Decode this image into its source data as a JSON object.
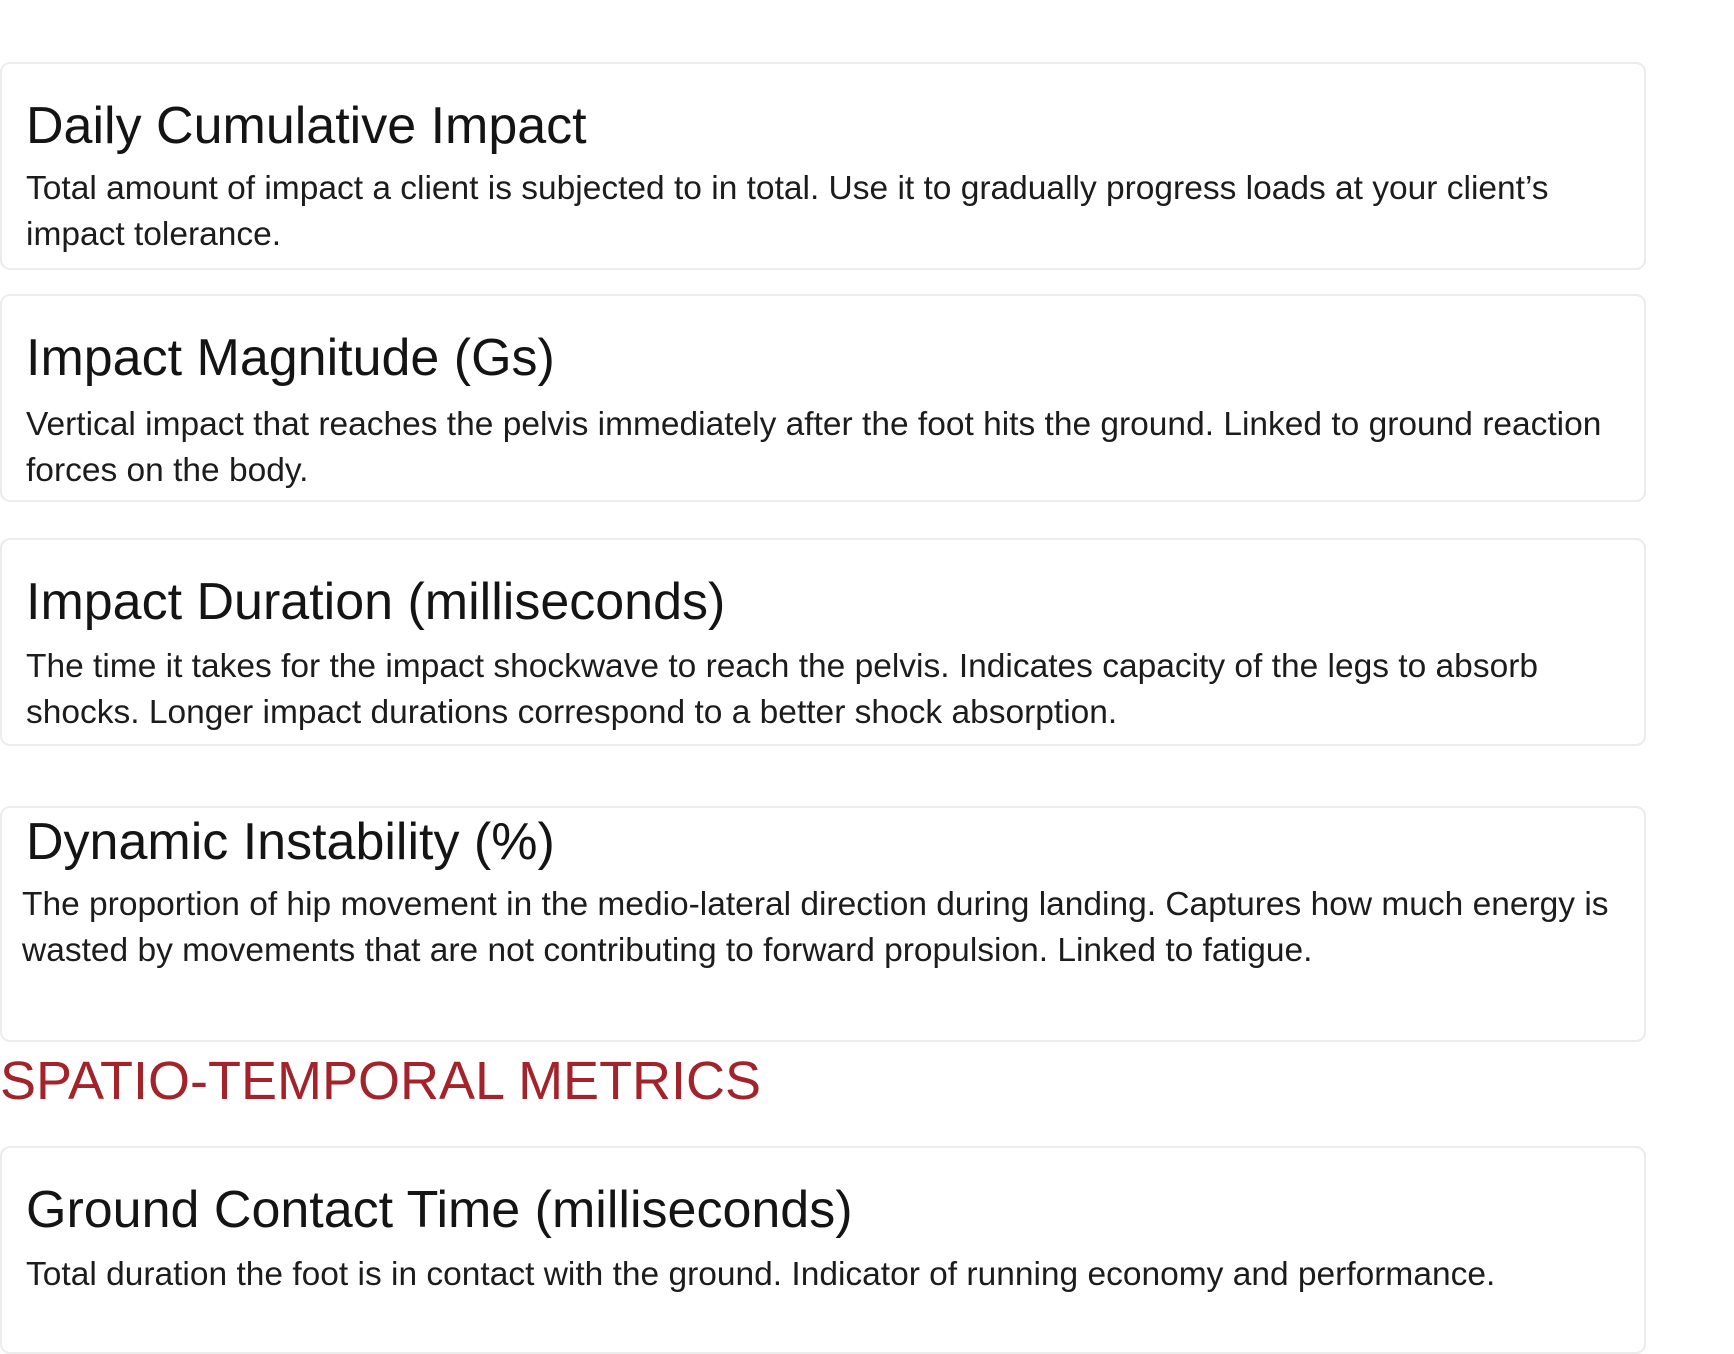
{
  "cards": [
    {
      "title": "Daily Cumulative Impact",
      "description": "Total amount of impact a client is subjected to in total. Use it to gradually progress loads at your client’s impact tolerance."
    },
    {
      "title": "Impact Magnitude (Gs)",
      "description": "Vertical impact that reaches the pelvis immediately after the foot hits the ground. Linked to ground reaction forces on the body."
    },
    {
      "title": "Impact Duration (milliseconds)",
      "description": "The time it takes for the impact shockwave to reach the pelvis. Indicates capacity of the legs to absorb shocks. Longer impact durations correspond to a better shock absorption."
    },
    {
      "title": "Dynamic Instability (%)",
      "description": "The proportion of hip movement in the medio-lateral direction during landing. Captures how much energy is wasted by movements that are not contributing to forward propulsion. Linked to fatigue."
    },
    {
      "title": "Ground Contact Time (milliseconds)",
      "description": "Total duration the foot is in contact with the ground. Indicator of running economy and performance."
    }
  ],
  "section": {
    "heading": "SPATIO-TEMPORAL METRICS"
  },
  "colors": {
    "section_heading": "#a3232b",
    "card_border": "#ececec"
  }
}
